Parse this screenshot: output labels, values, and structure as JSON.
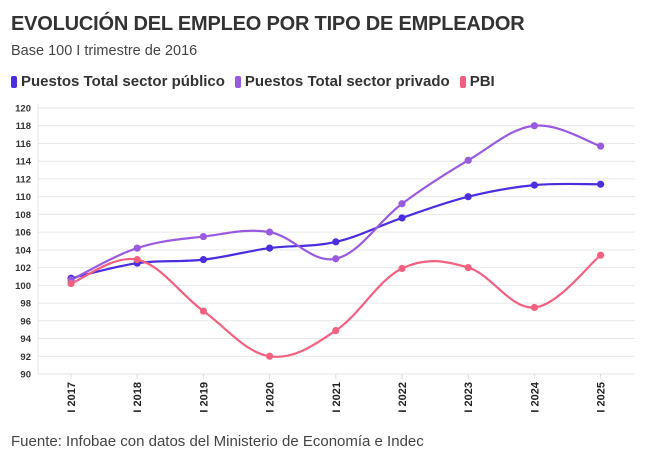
{
  "chart_data": {
    "type": "line",
    "title": "EVOLUCIÓN DEL EMPLEO POR TIPO DE EMPLEADOR",
    "subtitle": "Base 100 I trimestre de 2016",
    "xlabel": "",
    "ylabel": "",
    "categories": [
      "I 2017",
      "I 2018",
      "I 2019",
      "I 2020",
      "I 2021",
      "I 2022",
      "I 2023",
      "I 2024",
      "I 2025"
    ],
    "ylim": [
      90,
      120
    ],
    "yticks": [
      90,
      92,
      94,
      96,
      98,
      100,
      102,
      104,
      106,
      108,
      110,
      112,
      114,
      116,
      118,
      120
    ],
    "grid": true,
    "legend_position": "top-left",
    "series": [
      {
        "name": "Puestos Total sector público",
        "color": "#4a2ee0",
        "values": [
          100.8,
          102.5,
          102.9,
          104.2,
          104.9,
          107.6,
          110.0,
          111.3,
          111.4
        ]
      },
      {
        "name": "Puestos Total sector privado",
        "color": "#9a5ae0",
        "values": [
          100.6,
          104.2,
          105.5,
          106.0,
          103.0,
          109.2,
          114.1,
          118.0,
          115.7
        ]
      },
      {
        "name": "PBI",
        "color": "#f4607f",
        "values": [
          100.2,
          102.9,
          97.1,
          92.0,
          94.9,
          101.9,
          102.0,
          97.5,
          103.4
        ]
      }
    ]
  },
  "footer": {
    "source": "Fuente: Infobae con datos del Ministerio de Economía e Indec"
  }
}
